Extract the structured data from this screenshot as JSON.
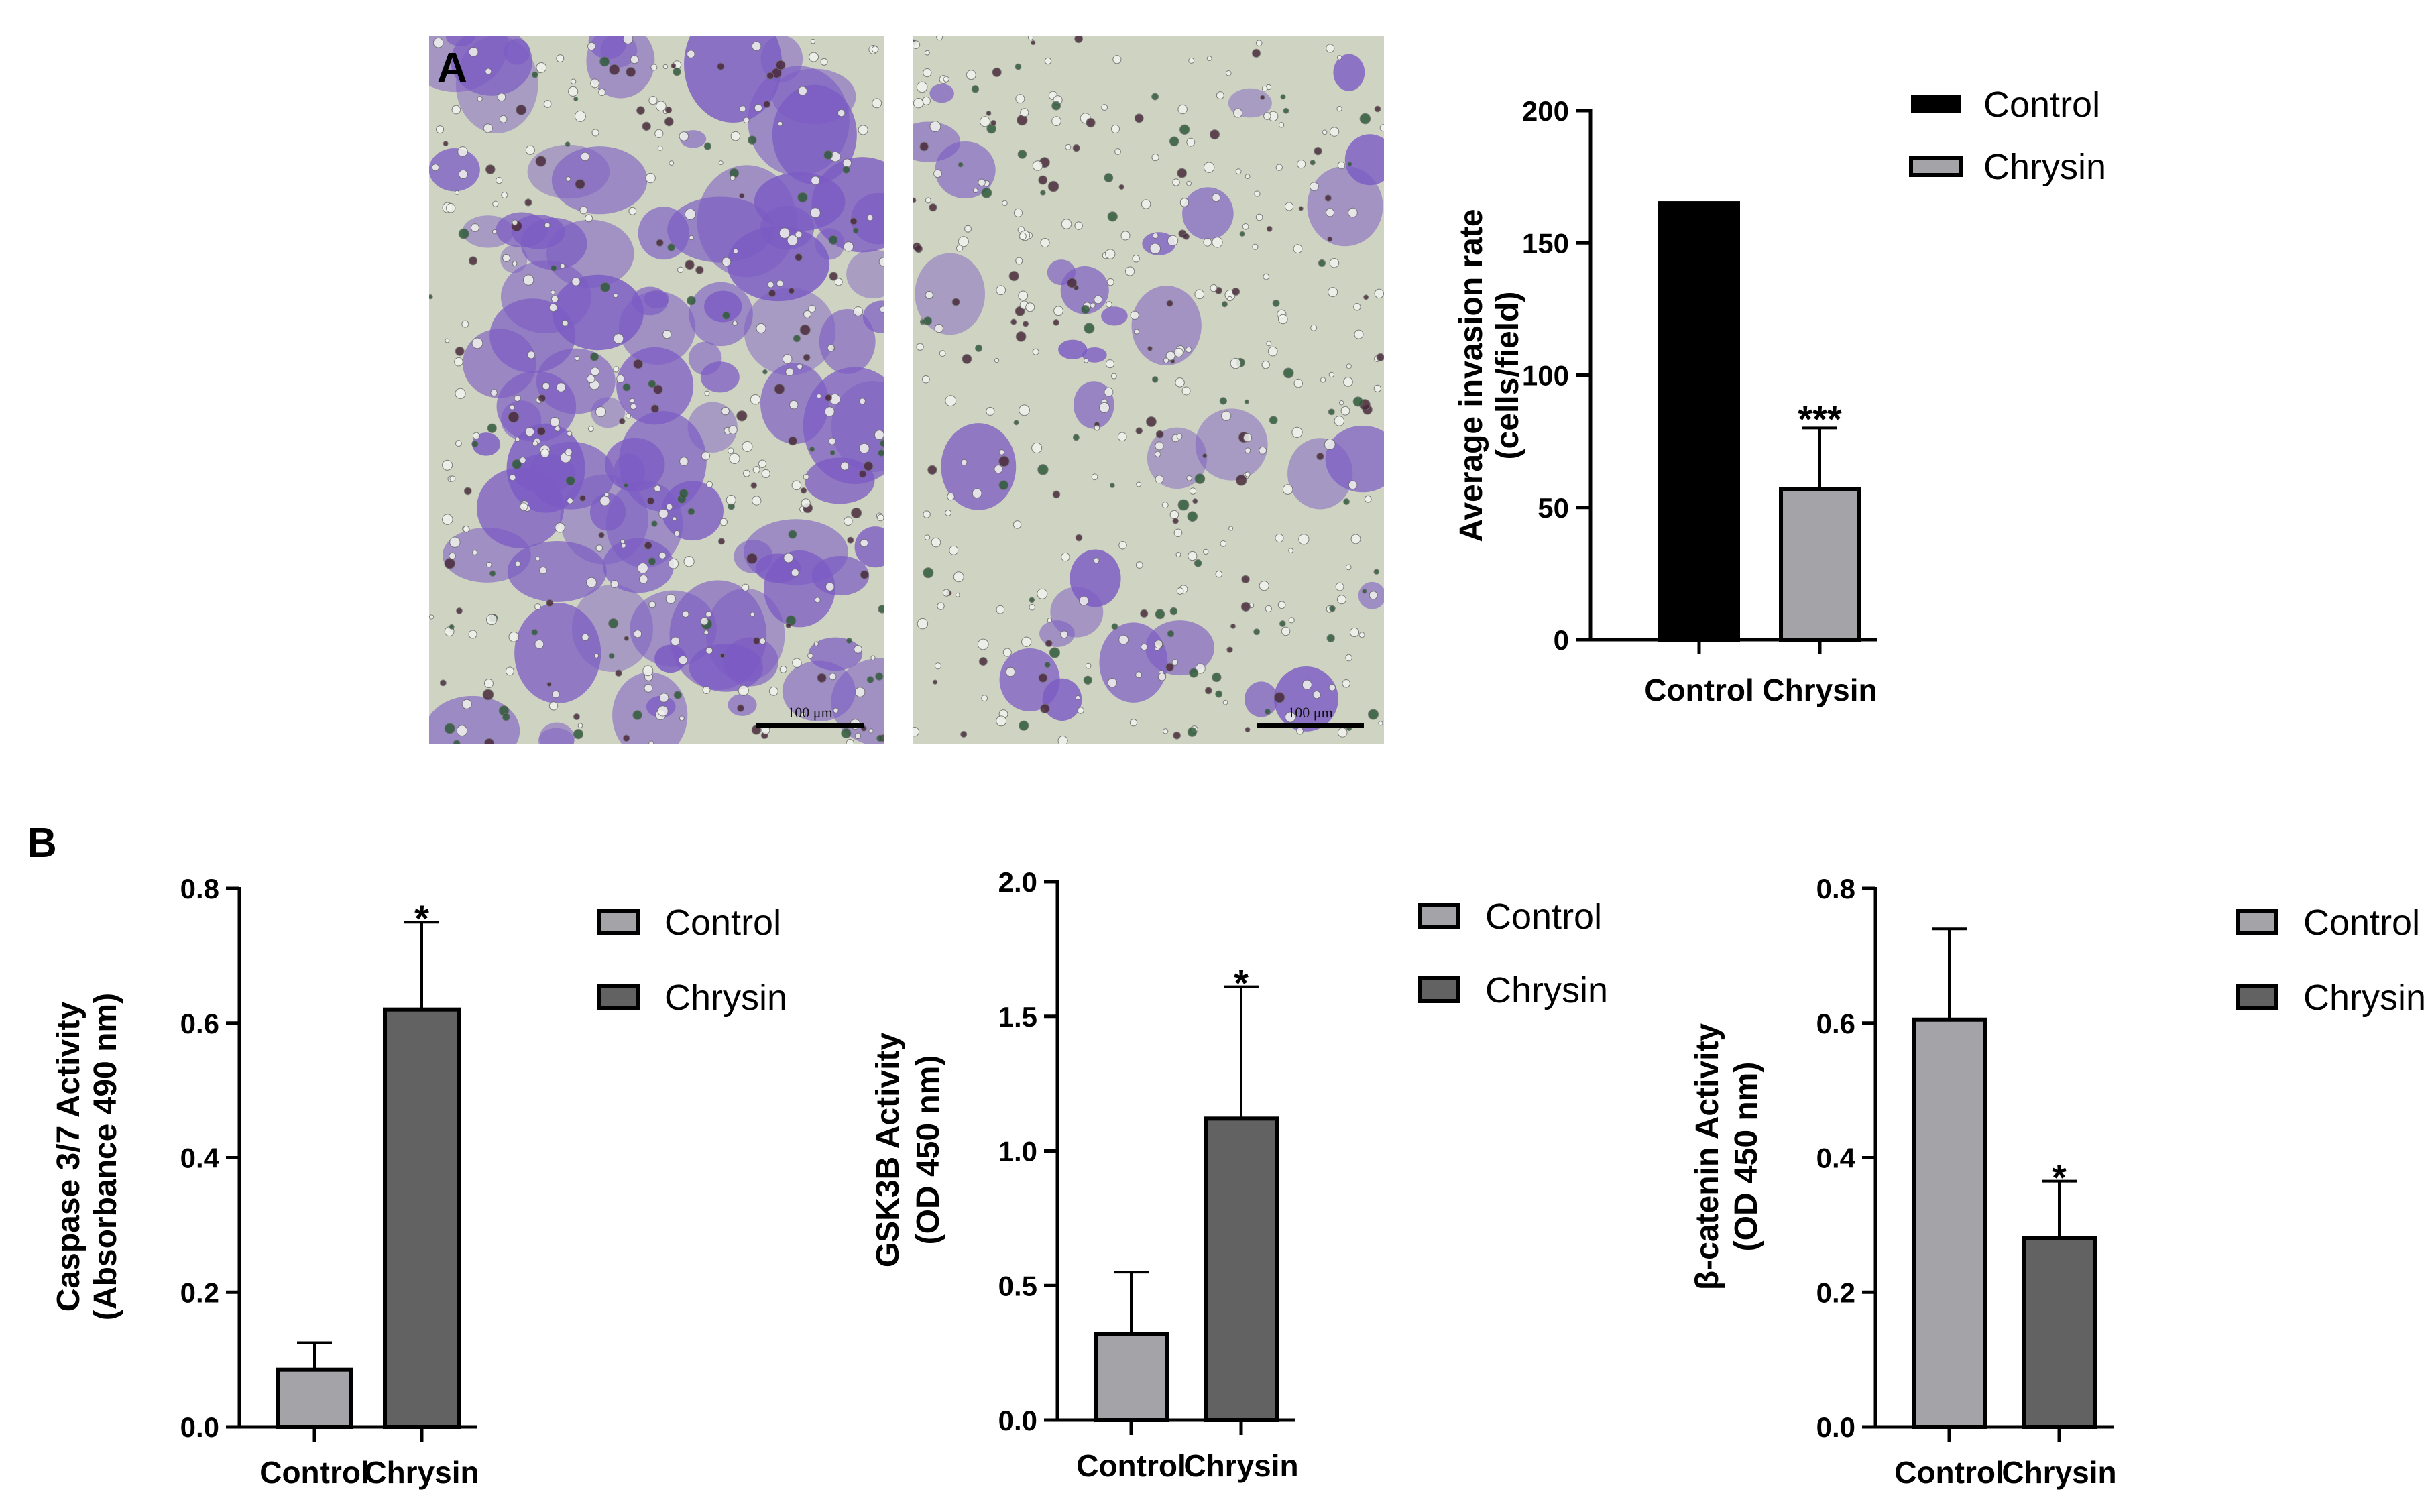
{
  "figure": {
    "panel_a_label": "A",
    "panel_b_label": "B",
    "micrographs": [
      {
        "scale_label": "100 μm"
      },
      {
        "scale_label": "100 μm"
      }
    ]
  },
  "colors": {
    "control_a": "#000000",
    "chrysin_light": "#a3a3a8",
    "chrysin_dark": "#626262",
    "stain_purple": "#7b5bc4",
    "background_field": "#cfd3c2"
  },
  "chart_data": [
    {
      "id": "invasion",
      "type": "bar",
      "categories": [
        "Control",
        "Chrysin"
      ],
      "values": [
        165,
        57
      ],
      "errors": [
        null,
        23
      ],
      "significance": [
        "",
        "***"
      ],
      "bar_colors": [
        "#000000",
        "#a3a3a8"
      ],
      "ylabel": [
        "Average invasion rate",
        "(cells/field)"
      ],
      "ylim": [
        0,
        200
      ],
      "yticks": [
        0,
        50,
        100,
        150,
        200
      ],
      "ytick_labels": [
        "0",
        "50",
        "100",
        "150",
        "200"
      ],
      "legend": [
        {
          "label": "Control",
          "color": "#000000",
          "style": "solid"
        },
        {
          "label": "Chrysin",
          "color": "#a3a3a8",
          "style": "outlined"
        }
      ]
    },
    {
      "id": "caspase",
      "type": "bar",
      "categories": [
        "Control",
        "Chrysin"
      ],
      "values": [
        0.085,
        0.62
      ],
      "errors": [
        0.04,
        0.13
      ],
      "significance": [
        "",
        "*"
      ],
      "bar_colors": [
        "#a3a3a8",
        "#626262"
      ],
      "ylabel": [
        "Caspase 3/7 Activity",
        "(Absorbance 490 nm)"
      ],
      "ylim": [
        0,
        0.8
      ],
      "yticks": [
        0,
        0.2,
        0.4,
        0.6,
        0.8
      ],
      "ytick_labels": [
        "0.0",
        "0.2",
        "0.4",
        "0.6",
        "0.8"
      ],
      "legend": [
        {
          "label": "Control",
          "color": "#a3a3a8",
          "style": "outlined"
        },
        {
          "label": "Chrysin",
          "color": "#626262",
          "style": "outlined"
        }
      ]
    },
    {
      "id": "gsk3b",
      "type": "bar",
      "categories": [
        "Control",
        "Chrysin"
      ],
      "values": [
        0.32,
        1.12
      ],
      "errors": [
        0.23,
        0.49
      ],
      "significance": [
        "",
        "*"
      ],
      "bar_colors": [
        "#a3a3a8",
        "#626262"
      ],
      "ylabel": [
        "GSK3B Activity",
        "(OD 450 nm)"
      ],
      "ylim": [
        0,
        2.0
      ],
      "yticks": [
        0,
        0.5,
        1.0,
        1.5,
        2.0
      ],
      "ytick_labels": [
        "0.0",
        "0.5",
        "1.0",
        "1.5",
        "2.0"
      ],
      "legend": [
        {
          "label": "Control",
          "color": "#a3a3a8",
          "style": "outlined"
        },
        {
          "label": "Chrysin",
          "color": "#626262",
          "style": "outlined"
        }
      ]
    },
    {
      "id": "betacatenin",
      "type": "bar",
      "categories": [
        "Control",
        "Chrysin"
      ],
      "values": [
        0.605,
        0.28
      ],
      "errors": [
        0.135,
        0.085
      ],
      "significance": [
        "",
        "*"
      ],
      "bar_colors": [
        "#a3a3a8",
        "#626262"
      ],
      "ylabel": [
        "β-catenin Activity",
        "(OD 450 nm)"
      ],
      "ylim": [
        0,
        0.8
      ],
      "yticks": [
        0,
        0.2,
        0.4,
        0.6,
        0.8
      ],
      "ytick_labels": [
        "0.0",
        "0.2",
        "0.4",
        "0.6",
        "0.8"
      ],
      "legend": [
        {
          "label": "Control",
          "color": "#a3a3a8",
          "style": "outlined"
        },
        {
          "label": "Chrysin",
          "color": "#626262",
          "style": "outlined"
        }
      ]
    }
  ]
}
